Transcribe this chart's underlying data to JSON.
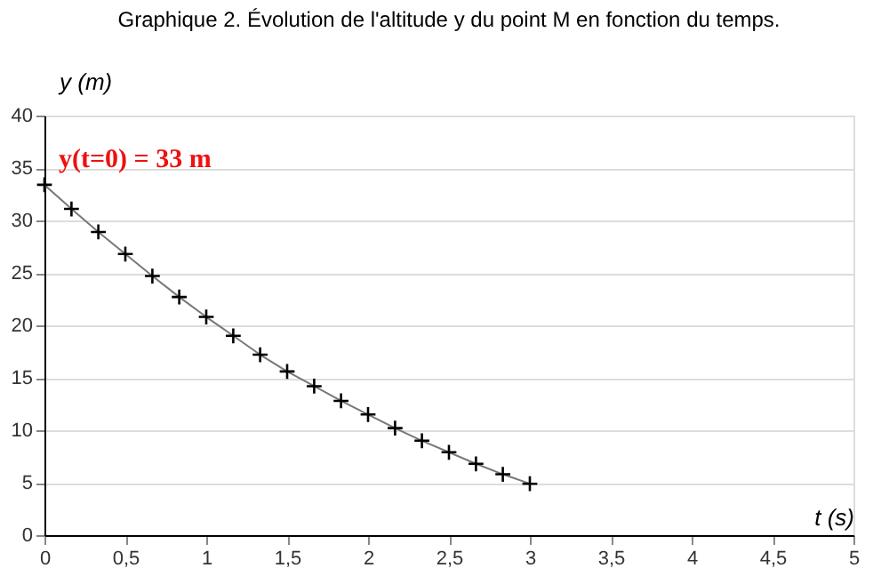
{
  "chart_data": {
    "type": "line",
    "title": "Graphique 2. Évolution de l'altitude y du point M en fonction du temps.",
    "xlabel": "t (s)",
    "ylabel": "y (m)",
    "x": [
      0,
      0.167,
      0.333,
      0.5,
      0.667,
      0.833,
      1,
      1.167,
      1.333,
      1.5,
      1.667,
      1.833,
      2,
      2.167,
      2.333,
      2.5,
      2.667,
      2.833,
      3
    ],
    "series": [
      {
        "color": "#000000",
        "values": [
          33.4,
          31.1,
          28.9,
          26.8,
          24.7,
          22.7,
          20.8,
          19.0,
          17.2,
          15.6,
          14.2,
          12.8,
          11.5,
          10.2,
          9.0,
          7.9,
          6.8,
          5.8,
          4.9
        ]
      }
    ],
    "xlim": [
      0,
      5
    ],
    "ylim": [
      0,
      40
    ],
    "xticks": [
      0,
      {
        "value": 0.5,
        "label": "0,5"
      },
      1,
      {
        "value": 1.5,
        "label": "1,5"
      },
      2,
      {
        "value": 2.5,
        "label": "2,5"
      },
      3,
      {
        "value": 3.5,
        "label": "3,5"
      },
      4,
      {
        "value": 4.5,
        "label": "4,5"
      },
      5
    ],
    "yticks": [
      0,
      5,
      10,
      15,
      20,
      25,
      30,
      35,
      40
    ],
    "grid": "y",
    "marker": "cross",
    "line_style": "solid",
    "annotations": [
      "y(t=0) = 33 m"
    ]
  }
}
